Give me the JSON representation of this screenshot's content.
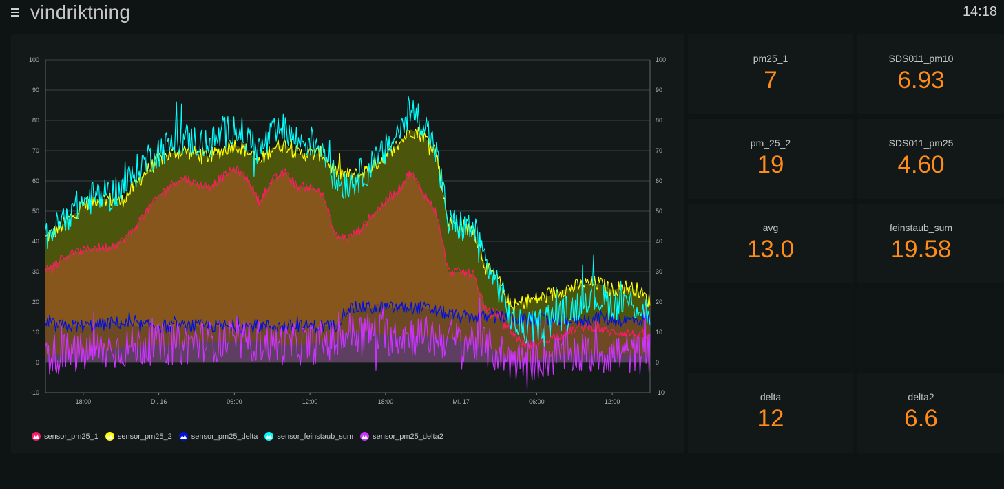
{
  "header": {
    "title": "vindriktning",
    "clock": "14:18"
  },
  "tiles": [
    {
      "label": "pm25_1",
      "value": "7"
    },
    {
      "label": "SDS011_pm10",
      "value": "6.93"
    },
    {
      "label": "pm_25_2",
      "value": "19"
    },
    {
      "label": "SDS011_pm25",
      "value": "4.60"
    },
    {
      "label": "avg",
      "value": "13.0"
    },
    {
      "label": "feinstaub_sum",
      "value": "19.58"
    },
    {
      "label": "delta",
      "value": "12"
    },
    {
      "label": "delta2",
      "value": "6.6"
    }
  ],
  "chart_data": {
    "type": "line",
    "title": "",
    "xlabel": "",
    "ylabel": "",
    "ylim": [
      -10,
      100
    ],
    "yticks": [
      "-10",
      "0",
      "10",
      "20",
      "30",
      "40",
      "50",
      "60",
      "70",
      "80",
      "90",
      "100"
    ],
    "x_range_hours": [
      0,
      48
    ],
    "xticks": [
      {
        "t": 3,
        "label": "18:00"
      },
      {
        "t": 9,
        "label": "Di. 16"
      },
      {
        "t": 15,
        "label": "06:00"
      },
      {
        "t": 21,
        "label": "12:00"
      },
      {
        "t": 27,
        "label": "18:00"
      },
      {
        "t": 33,
        "label": "Mi. 17"
      },
      {
        "t": 39,
        "label": "06:00"
      },
      {
        "t": 45,
        "label": "12:00"
      }
    ],
    "series": [
      {
        "name": "sensor_pm25_2",
        "color": "#ffff00",
        "fill": "#4f5a0c",
        "noise": 2.5,
        "x": [
          0,
          1,
          2,
          3,
          4,
          5,
          6,
          7,
          8,
          9,
          10,
          11,
          12,
          13,
          14,
          15,
          16,
          17,
          18,
          19,
          20,
          21,
          22,
          23,
          24,
          25,
          26,
          27,
          28,
          29,
          30,
          31,
          32,
          33,
          34,
          35,
          36,
          37,
          38,
          39,
          40,
          41,
          42,
          43,
          44,
          45,
          46,
          47,
          48
        ],
        "values": [
          41,
          44,
          48,
          52,
          54,
          54,
          53,
          58,
          63,
          67,
          69,
          70,
          69,
          68,
          70,
          72,
          70,
          66,
          71,
          72,
          69,
          69,
          69,
          63,
          62,
          62,
          65,
          68,
          72,
          77,
          75,
          70,
          46,
          45,
          44,
          31,
          27,
          18,
          20,
          21,
          22,
          24,
          25,
          26,
          26,
          24,
          25,
          24,
          20
        ]
      },
      {
        "name": "sensor_pm25_1",
        "color": "#ff1a66",
        "fill": "#8a561f",
        "noise": 1.5,
        "x": [
          0,
          1,
          2,
          3,
          4,
          5,
          6,
          7,
          8,
          9,
          10,
          11,
          12,
          13,
          14,
          15,
          16,
          17,
          18,
          19,
          20,
          21,
          22,
          23,
          24,
          25,
          26,
          27,
          28,
          29,
          30,
          31,
          32,
          33,
          34,
          35,
          36,
          37,
          38,
          39,
          40,
          41,
          42,
          43,
          44,
          45,
          46,
          47,
          48
        ],
        "values": [
          31,
          33,
          36,
          37,
          38,
          38,
          40,
          44,
          50,
          55,
          59,
          61,
          59,
          58,
          61,
          64,
          61,
          53,
          60,
          63,
          58,
          58,
          56,
          42,
          41,
          44,
          49,
          53,
          57,
          63,
          56,
          50,
          30,
          30,
          29,
          17,
          16,
          10,
          6,
          6,
          8,
          9,
          11,
          12,
          11,
          10,
          10,
          9,
          8
        ]
      },
      {
        "name": "sensor_feinstaub_sum",
        "color": "#00ffff",
        "fill": null,
        "noise": 5.5,
        "x": [
          0,
          1,
          2,
          3,
          4,
          5,
          6,
          7,
          8,
          9,
          10,
          11,
          12,
          13,
          14,
          15,
          16,
          17,
          18,
          19,
          20,
          21,
          22,
          23,
          24,
          25,
          26,
          27,
          28,
          29,
          30,
          31,
          32,
          33,
          34,
          35,
          36,
          37,
          38,
          39,
          40,
          41,
          42,
          43,
          44,
          45,
          46,
          47,
          48
        ],
        "values": [
          42,
          45,
          50,
          53,
          55,
          55,
          57,
          62,
          67,
          70,
          72,
          74,
          73,
          72,
          75,
          78,
          74,
          70,
          75,
          77,
          73,
          73,
          72,
          60,
          59,
          62,
          65,
          70,
          76,
          83,
          80,
          70,
          46,
          45,
          44,
          33,
          25,
          14,
          11,
          12,
          15,
          16,
          18,
          22,
          21,
          19,
          20,
          19,
          16
        ]
      },
      {
        "name": "sensor_pm25_delta",
        "color": "#0011dd",
        "fill": "#6b4a24",
        "noise": 2.2,
        "x": [
          0,
          1,
          2,
          3,
          4,
          5,
          6,
          7,
          8,
          9,
          10,
          11,
          12,
          13,
          14,
          15,
          16,
          17,
          18,
          19,
          20,
          21,
          22,
          23,
          24,
          25,
          26,
          27,
          28,
          29,
          30,
          31,
          32,
          33,
          34,
          35,
          36,
          37,
          38,
          39,
          40,
          41,
          42,
          43,
          44,
          45,
          46,
          47,
          48
        ],
        "values": [
          13,
          12,
          12,
          12,
          12,
          13,
          13,
          12,
          12,
          12,
          12,
          12,
          12,
          12,
          12,
          12,
          12,
          12,
          12,
          12,
          12,
          12,
          12,
          12,
          18,
          18,
          18,
          18,
          18,
          18,
          18,
          17,
          16,
          15,
          15,
          15,
          15,
          15,
          14,
          14,
          14,
          14,
          14,
          14,
          15,
          14,
          14,
          14,
          14
        ]
      },
      {
        "name": "sensor_pm25_delta2",
        "color": "#cc33ff",
        "fill": "#5e3e66",
        "noise": 7,
        "x": [
          0,
          1,
          2,
          3,
          4,
          5,
          6,
          7,
          8,
          9,
          10,
          11,
          12,
          13,
          14,
          15,
          16,
          17,
          18,
          19,
          20,
          21,
          22,
          23,
          24,
          25,
          26,
          27,
          28,
          29,
          30,
          31,
          32,
          33,
          34,
          35,
          36,
          37,
          38,
          39,
          40,
          41,
          42,
          43,
          44,
          45,
          46,
          47,
          48
        ],
        "values": [
          2,
          3,
          3,
          3,
          4,
          4,
          5,
          5,
          6,
          6,
          6,
          6,
          7,
          7,
          7,
          7,
          7,
          7,
          6,
          6,
          6,
          6,
          7,
          7,
          10,
          10,
          10,
          9,
          9,
          9,
          9,
          8,
          8,
          7,
          7,
          5,
          3,
          1,
          0,
          1,
          2,
          3,
          3,
          3,
          3,
          3,
          3,
          3,
          3
        ]
      }
    ],
    "legend": [
      "sensor_pm25_1",
      "sensor_pm25_2",
      "sensor_pm25_delta",
      "sensor_feinstaub_sum",
      "sensor_pm25_delta2"
    ],
    "legend_colors": [
      "#ff1a66",
      "#ffff00",
      "#0011dd",
      "#00ffff",
      "#cc33ff"
    ]
  }
}
